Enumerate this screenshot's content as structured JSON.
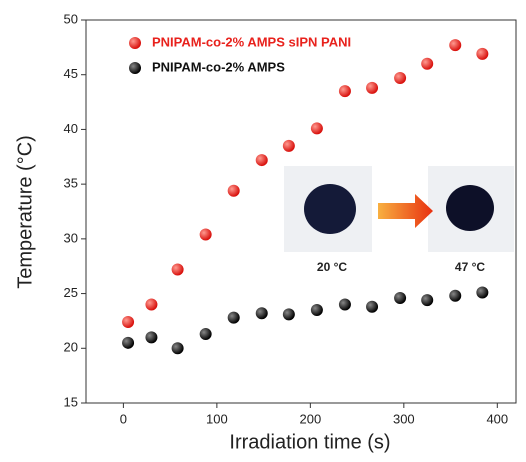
{
  "chart_data": {
    "type": "scatter",
    "xlabel": "Irradiation time (s)",
    "ylabel": "Temperature (°C)",
    "x": [
      5,
      30,
      58,
      88,
      118,
      148,
      177,
      207,
      237,
      266,
      296,
      325,
      355,
      384
    ],
    "series": [
      {
        "name": "PNIPAM-co-2% AMPS sIPN PANI",
        "color": "#e8211c",
        "values": [
          22.4,
          24,
          27.2,
          30.4,
          34.4,
          37.2,
          38.5,
          40.1,
          43.5,
          43.8,
          44.7,
          46,
          47.7,
          46.9
        ]
      },
      {
        "name": "PNIPAM-co-2% AMPS",
        "color": "#111111",
        "values": [
          20.5,
          21,
          20,
          21.3,
          22.8,
          23.2,
          23.1,
          23.5,
          24,
          23.8,
          24.6,
          24.4,
          24.8,
          25.1
        ]
      }
    ],
    "xlim": [
      -40,
      420
    ],
    "xticks": [
      0,
      100,
      200,
      300,
      400
    ],
    "ylim": [
      15,
      50
    ],
    "yticks": [
      15,
      20,
      25,
      30,
      35,
      40,
      45,
      50
    ],
    "annotations": [
      "20 °C",
      "47 °C"
    ]
  }
}
